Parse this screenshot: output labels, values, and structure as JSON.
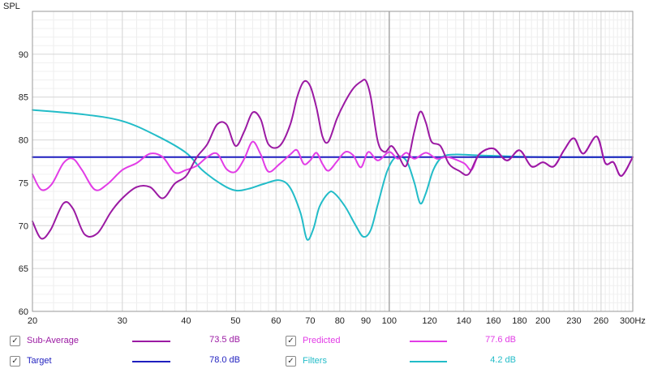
{
  "chart_data": {
    "type": "line",
    "ylabel": "SPL",
    "x_scale": "log",
    "xlim": [
      20,
      300
    ],
    "ylim": [
      60,
      95
    ],
    "grid": true,
    "x_ticks": [
      {
        "v": 20,
        "label": "20"
      },
      {
        "v": 30,
        "label": "30"
      },
      {
        "v": 40,
        "label": "40"
      },
      {
        "v": 50,
        "label": "50"
      },
      {
        "v": 60,
        "label": "60"
      },
      {
        "v": 70,
        "label": "70"
      },
      {
        "v": 80,
        "label": "80"
      },
      {
        "v": 90,
        "label": "90"
      },
      {
        "v": 100,
        "label": "100"
      },
      {
        "v": 120,
        "label": "120"
      },
      {
        "v": 140,
        "label": "140"
      },
      {
        "v": 160,
        "label": "160"
      },
      {
        "v": 180,
        "label": "180"
      },
      {
        "v": 200,
        "label": "200"
      },
      {
        "v": 230,
        "label": "230"
      },
      {
        "v": 260,
        "label": "260"
      },
      {
        "v": 300,
        "label": "300Hz"
      }
    ],
    "y_ticks": [
      {
        "v": 60,
        "label": "60"
      },
      {
        "v": 65,
        "label": "65"
      },
      {
        "v": 70,
        "label": "70"
      },
      {
        "v": 75,
        "label": "75"
      },
      {
        "v": 80,
        "label": "80"
      },
      {
        "v": 85,
        "label": "85"
      },
      {
        "v": 90,
        "label": "90"
      }
    ],
    "series": [
      {
        "name": "Filters",
        "color": "#22bcc8",
        "points": [
          [
            20,
            83.5
          ],
          [
            25,
            83.0
          ],
          [
            30,
            82.2
          ],
          [
            35,
            80.5
          ],
          [
            40,
            78.5
          ],
          [
            43,
            76.5
          ],
          [
            47,
            74.8
          ],
          [
            50,
            74.1
          ],
          [
            53,
            74.3
          ],
          [
            57,
            74.9
          ],
          [
            61,
            75.3
          ],
          [
            64,
            74.4
          ],
          [
            67,
            71.5
          ],
          [
            69,
            68.4
          ],
          [
            71,
            69.6
          ],
          [
            73,
            72.2
          ],
          [
            76,
            73.8
          ],
          [
            78,
            73.8
          ],
          [
            82,
            72.2
          ],
          [
            86,
            70.0
          ],
          [
            89,
            68.7
          ],
          [
            92,
            69.5
          ],
          [
            95,
            72.5
          ],
          [
            99,
            76.3
          ],
          [
            103,
            78.0
          ],
          [
            108,
            77.6
          ],
          [
            112,
            75.0
          ],
          [
            115,
            72.6
          ],
          [
            118,
            73.8
          ],
          [
            122,
            76.5
          ],
          [
            127,
            78.0
          ],
          [
            135,
            78.3
          ],
          [
            150,
            78.2
          ],
          [
            200,
            78.0
          ],
          [
            300,
            78.0
          ]
        ]
      },
      {
        "name": "Target",
        "color": "#1f1fbf",
        "points": [
          [
            20,
            78.0
          ],
          [
            300,
            78.0
          ]
        ]
      },
      {
        "name": "Predicted",
        "color": "#e23ce6",
        "points": [
          [
            20,
            76.0
          ],
          [
            20.8,
            74.2
          ],
          [
            21.8,
            74.8
          ],
          [
            23,
            77.3
          ],
          [
            24,
            77.8
          ],
          [
            25,
            76.5
          ],
          [
            26.5,
            74.2
          ],
          [
            28,
            74.8
          ],
          [
            30,
            76.5
          ],
          [
            32,
            77.3
          ],
          [
            34,
            78.4
          ],
          [
            36,
            78.0
          ],
          [
            38,
            76.2
          ],
          [
            40,
            76.5
          ],
          [
            42,
            77.0
          ],
          [
            44,
            78.0
          ],
          [
            46,
            78.4
          ],
          [
            48,
            76.6
          ],
          [
            50,
            76.3
          ],
          [
            52,
            77.8
          ],
          [
            54,
            79.8
          ],
          [
            56,
            78.3
          ],
          [
            58,
            76.3
          ],
          [
            61,
            77.2
          ],
          [
            64,
            78.3
          ],
          [
            66,
            78.8
          ],
          [
            68,
            77.2
          ],
          [
            70,
            77.6
          ],
          [
            72,
            78.5
          ],
          [
            74,
            77.2
          ],
          [
            76,
            76.4
          ],
          [
            79,
            77.5
          ],
          [
            82,
            78.6
          ],
          [
            85,
            78.2
          ],
          [
            88,
            76.8
          ],
          [
            91,
            78.6
          ],
          [
            95,
            77.6
          ],
          [
            100,
            78.6
          ],
          [
            104,
            77.8
          ],
          [
            108,
            78.5
          ],
          [
            112,
            77.8
          ],
          [
            118,
            78.5
          ],
          [
            124,
            77.8
          ],
          [
            130,
            78.0
          ],
          [
            140,
            77.3
          ],
          [
            145,
            76.5
          ],
          [
            150,
            78.3
          ],
          [
            160,
            79.0
          ],
          [
            170,
            77.6
          ],
          [
            180,
            78.8
          ],
          [
            190,
            76.9
          ],
          [
            200,
            77.4
          ],
          [
            210,
            76.9
          ],
          [
            220,
            78.8
          ],
          [
            230,
            80.2
          ],
          [
            240,
            78.4
          ],
          [
            255,
            80.4
          ],
          [
            265,
            77.3
          ],
          [
            275,
            77.4
          ],
          [
            285,
            75.8
          ],
          [
            300,
            78.0
          ]
        ]
      },
      {
        "name": "Sub-Average",
        "color": "#9b1aa3",
        "points": [
          [
            20,
            70.5
          ],
          [
            20.8,
            68.5
          ],
          [
            21.7,
            69.5
          ],
          [
            23,
            72.6
          ],
          [
            24,
            72.0
          ],
          [
            25.3,
            69.0
          ],
          [
            26.8,
            69.1
          ],
          [
            28.5,
            71.6
          ],
          [
            30,
            73.2
          ],
          [
            32,
            74.5
          ],
          [
            34,
            74.5
          ],
          [
            36,
            73.2
          ],
          [
            38,
            74.9
          ],
          [
            40,
            75.8
          ],
          [
            42,
            78.0
          ],
          [
            44,
            79.5
          ],
          [
            46,
            81.8
          ],
          [
            48,
            81.8
          ],
          [
            50,
            79.3
          ],
          [
            52,
            81.0
          ],
          [
            54,
            83.2
          ],
          [
            56,
            82.4
          ],
          [
            58,
            79.5
          ],
          [
            61,
            79.3
          ],
          [
            64,
            81.8
          ],
          [
            66,
            85.0
          ],
          [
            68,
            86.8
          ],
          [
            70,
            86.3
          ],
          [
            72,
            83.8
          ],
          [
            74,
            80.4
          ],
          [
            76,
            79.8
          ],
          [
            79,
            82.5
          ],
          [
            82,
            84.5
          ],
          [
            85,
            86.0
          ],
          [
            88,
            86.8
          ],
          [
            90,
            86.9
          ],
          [
            92,
            85.0
          ],
          [
            95,
            79.8
          ],
          [
            98,
            78.6
          ],
          [
            101,
            79.3
          ],
          [
            104,
            78.3
          ],
          [
            108,
            77.0
          ],
          [
            112,
            81.0
          ],
          [
            115,
            83.3
          ],
          [
            118,
            82.0
          ],
          [
            121,
            79.8
          ],
          [
            126,
            79.3
          ],
          [
            131,
            77.2
          ],
          [
            137,
            76.4
          ],
          [
            143,
            76.0
          ],
          [
            150,
            78.3
          ],
          [
            160,
            79.0
          ],
          [
            170,
            77.6
          ],
          [
            180,
            78.8
          ],
          [
            190,
            76.9
          ],
          [
            200,
            77.4
          ],
          [
            210,
            76.9
          ],
          [
            220,
            78.8
          ],
          [
            230,
            80.2
          ],
          [
            240,
            78.4
          ],
          [
            255,
            80.4
          ],
          [
            265,
            77.3
          ],
          [
            275,
            77.4
          ],
          [
            285,
            75.8
          ],
          [
            300,
            78.0
          ]
        ]
      }
    ]
  },
  "legend": [
    {
      "key": "subavg",
      "label": "Sub-Average",
      "value": "73.5 dB",
      "color": "#9b1aa3"
    },
    {
      "key": "predicted",
      "label": "Predicted",
      "value": "77.6 dB",
      "color": "#e23ce6"
    },
    {
      "key": "target",
      "label": "Target",
      "value": "78.0 dB",
      "color": "#1f1fbf"
    },
    {
      "key": "filters",
      "label": "Filters",
      "value": "4.2 dB",
      "color": "#22bcc8"
    }
  ],
  "check_glyph": "✓"
}
